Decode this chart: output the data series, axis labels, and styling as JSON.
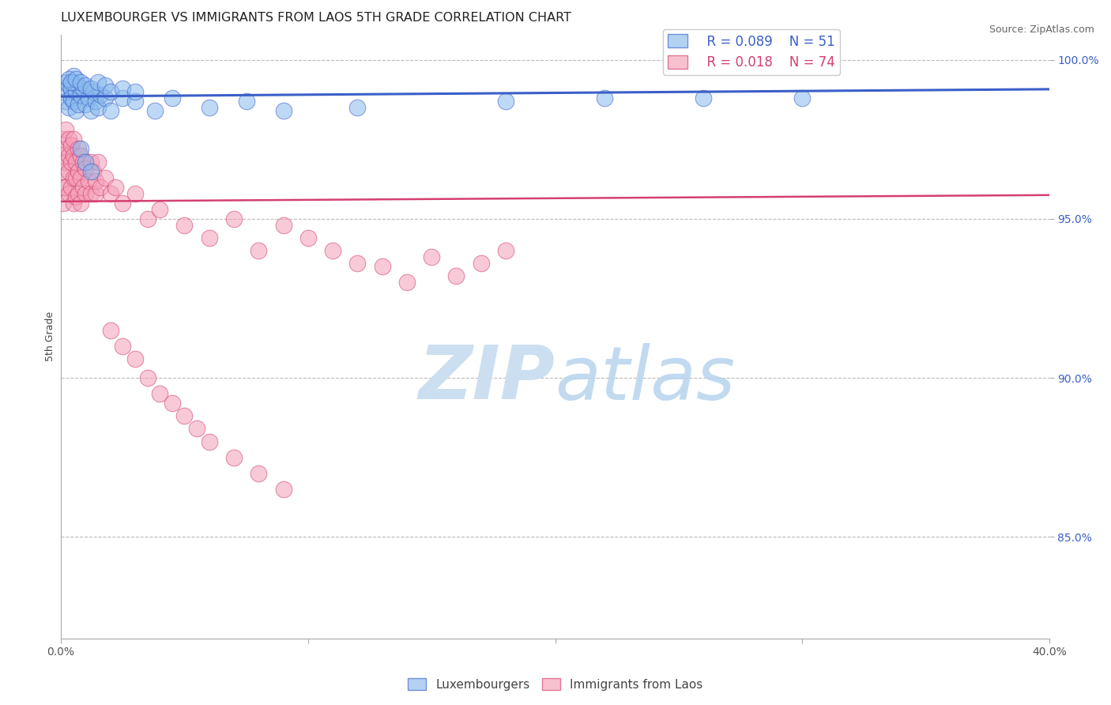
{
  "title": "LUXEMBOURGER VS IMMIGRANTS FROM LAOS 5TH GRADE CORRELATION CHART",
  "source": "Source: ZipAtlas.com",
  "ylabel": "5th Grade",
  "xlim": [
    0.0,
    0.4
  ],
  "ylim": [
    0.818,
    1.008
  ],
  "yticks": [
    0.85,
    0.9,
    0.95,
    1.0
  ],
  "ytick_labels": [
    "85.0%",
    "90.0%",
    "95.0%",
    "100.0%"
  ],
  "xticks": [
    0.0,
    0.1,
    0.2,
    0.3,
    0.4
  ],
  "xtick_labels": [
    "0.0%",
    "",
    "",
    "",
    "40.0%"
  ],
  "legend_blue_R": "R = 0.089",
  "legend_blue_N": "N = 51",
  "legend_pink_R": "R = 0.018",
  "legend_pink_N": "N = 74",
  "blue_scatter_x": [
    0.001,
    0.002,
    0.002,
    0.003,
    0.003,
    0.004,
    0.004,
    0.005,
    0.005,
    0.006,
    0.006,
    0.007,
    0.007,
    0.008,
    0.009,
    0.01,
    0.011,
    0.012,
    0.013,
    0.014,
    0.015,
    0.016,
    0.018,
    0.02,
    0.025,
    0.03,
    0.038,
    0.045,
    0.06,
    0.075,
    0.09,
    0.12,
    0.18,
    0.22,
    0.26,
    0.3,
    0.005,
    0.003,
    0.004,
    0.006,
    0.008,
    0.01,
    0.012,
    0.015,
    0.018,
    0.02,
    0.025,
    0.03,
    0.008,
    0.01,
    0.012
  ],
  "blue_scatter_y": [
    0.99,
    0.993,
    0.987,
    0.992,
    0.985,
    0.991,
    0.988,
    0.993,
    0.987,
    0.99,
    0.984,
    0.992,
    0.986,
    0.989,
    0.991,
    0.986,
    0.988,
    0.984,
    0.99,
    0.987,
    0.985,
    0.989,
    0.988,
    0.984,
    0.988,
    0.987,
    0.984,
    0.988,
    0.985,
    0.987,
    0.984,
    0.985,
    0.987,
    0.988,
    0.988,
    0.988,
    0.995,
    0.994,
    0.993,
    0.994,
    0.993,
    0.992,
    0.991,
    0.993,
    0.992,
    0.99,
    0.991,
    0.99,
    0.972,
    0.968,
    0.965
  ],
  "pink_scatter_x": [
    0.001,
    0.001,
    0.001,
    0.001,
    0.001,
    0.002,
    0.002,
    0.002,
    0.002,
    0.003,
    0.003,
    0.003,
    0.003,
    0.004,
    0.004,
    0.004,
    0.005,
    0.005,
    0.005,
    0.005,
    0.006,
    0.006,
    0.006,
    0.007,
    0.007,
    0.007,
    0.008,
    0.008,
    0.008,
    0.009,
    0.009,
    0.01,
    0.01,
    0.011,
    0.012,
    0.012,
    0.013,
    0.014,
    0.014,
    0.015,
    0.016,
    0.018,
    0.02,
    0.022,
    0.025,
    0.03,
    0.035,
    0.04,
    0.05,
    0.06,
    0.07,
    0.08,
    0.09,
    0.1,
    0.11,
    0.12,
    0.13,
    0.14,
    0.15,
    0.16,
    0.17,
    0.18,
    0.02,
    0.025,
    0.03,
    0.035,
    0.04,
    0.045,
    0.05,
    0.055,
    0.06,
    0.07,
    0.08,
    0.09
  ],
  "pink_scatter_y": [
    0.975,
    0.97,
    0.965,
    0.96,
    0.955,
    0.978,
    0.972,
    0.968,
    0.96,
    0.975,
    0.97,
    0.965,
    0.958,
    0.973,
    0.968,
    0.96,
    0.975,
    0.97,
    0.963,
    0.955,
    0.968,
    0.963,
    0.957,
    0.972,
    0.965,
    0.958,
    0.97,
    0.963,
    0.955,
    0.968,
    0.96,
    0.966,
    0.958,
    0.962,
    0.968,
    0.958,
    0.965,
    0.958,
    0.962,
    0.968,
    0.96,
    0.963,
    0.958,
    0.96,
    0.955,
    0.958,
    0.95,
    0.953,
    0.948,
    0.944,
    0.95,
    0.94,
    0.948,
    0.944,
    0.94,
    0.936,
    0.935,
    0.93,
    0.938,
    0.932,
    0.936,
    0.94,
    0.915,
    0.91,
    0.906,
    0.9,
    0.895,
    0.892,
    0.888,
    0.884,
    0.88,
    0.875,
    0.87,
    0.865
  ],
  "blue_line_x": [
    0.0,
    0.4
  ],
  "blue_line_y": [
    0.9885,
    0.9908
  ],
  "pink_line_x": [
    0.0,
    0.4
  ],
  "pink_line_y": [
    0.9555,
    0.9575
  ],
  "blue_line_color": "#3a5fc8",
  "pink_line_color": "#d44070",
  "blue_scatter_color": "#8abaee",
  "pink_scatter_color": "#f4a0b8",
  "grid_color": "#bbbbbb",
  "background_color": "#ffffff",
  "watermark_color": "#ccdff0",
  "title_fontsize": 11.5,
  "tick_color": "#3a5fc8",
  "xtick_color": "#555555",
  "source_fontsize": 9,
  "legend_fontsize": 12
}
